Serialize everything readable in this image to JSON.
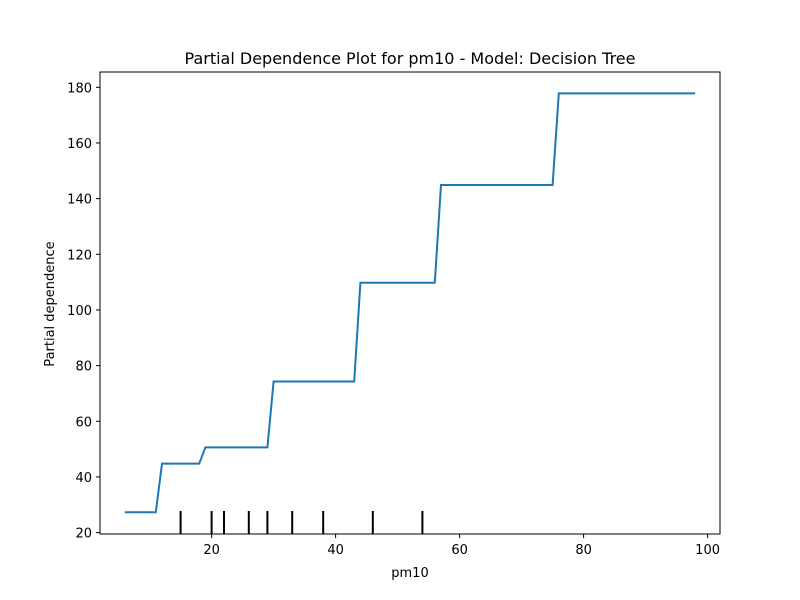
{
  "chart_data": {
    "type": "line",
    "title": "Partial Dependence Plot for pm10 - Model: Decision Tree",
    "xlabel": "pm10",
    "ylabel": "Partial dependence",
    "xlim": [
      2,
      102
    ],
    "ylim": [
      19.5,
      185.5
    ],
    "xticks": [
      20,
      40,
      60,
      80,
      100
    ],
    "yticks": [
      20,
      40,
      60,
      80,
      100,
      120,
      140,
      160,
      180
    ],
    "grid": false,
    "line_color": "#1f77b4",
    "series": [
      {
        "x": [
          6,
          11,
          12,
          18,
          19,
          29,
          30,
          43,
          44,
          56,
          57,
          75,
          76,
          98
        ],
        "y": [
          27.3,
          27.3,
          44.8,
          44.8,
          50.6,
          50.6,
          74.3,
          74.3,
          109.8,
          109.8,
          144.9,
          144.9,
          177.8,
          177.8
        ]
      }
    ],
    "rug": [
      15,
      20,
      22,
      26,
      29,
      33,
      38,
      46,
      54
    ]
  }
}
